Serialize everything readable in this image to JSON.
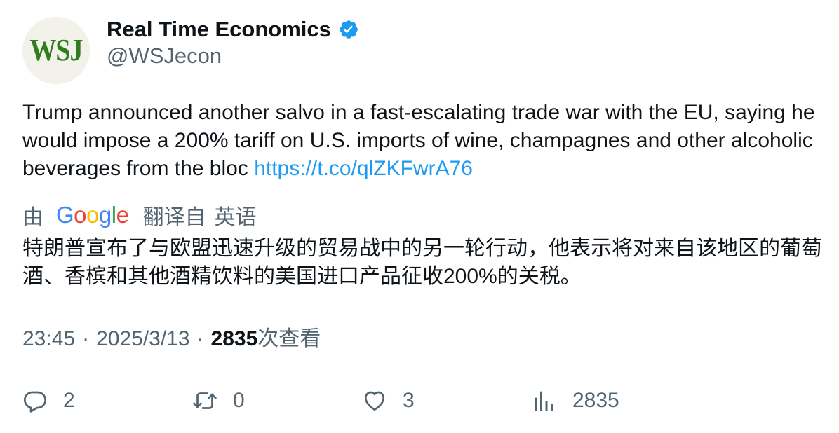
{
  "author": {
    "avatar_text": "WSJ",
    "display_name": "Real Time Economics",
    "handle": "@WSJecon",
    "verified_icon": "verified-badge-icon",
    "verified_color": "#1d9bf0"
  },
  "tweet": {
    "text": "Trump announced another salvo in a fast-escalating trade war with the EU, saying he would impose a 200% tariff on U.S. imports of wine, champagnes and other alcoholic beverages from the bloc ",
    "link": "https://t.co/qlZKFwrA76"
  },
  "translation": {
    "prefix": "由",
    "google_logo": "Google",
    "action_label": "翻译自",
    "source_language": "英语",
    "translated_text": "特朗普宣布了与欧盟迅速升级的贸易战中的另一轮行动，他表示将对来自该地区的葡萄酒、香槟和其他酒精饮料的美国进口产品征收200%的关税。"
  },
  "meta": {
    "time": "23:45",
    "date": "2025/3/13",
    "views_count": "2835",
    "views_label": "次查看"
  },
  "actions": {
    "reply": {
      "icon": "reply-icon",
      "count": "2"
    },
    "retweet": {
      "icon": "retweet-icon",
      "count": "0"
    },
    "like": {
      "icon": "heart-icon",
      "count": "3"
    },
    "views": {
      "icon": "analytics-icon",
      "count": "2835"
    }
  },
  "colors": {
    "text_primary": "#0f1419",
    "text_secondary": "#536471",
    "link": "#1d9bf0",
    "wsj_green": "#2f7d1e",
    "google_blue": "#4285f4",
    "google_red": "#ea4335",
    "google_yellow": "#fbbc05",
    "google_green": "#34a853"
  }
}
